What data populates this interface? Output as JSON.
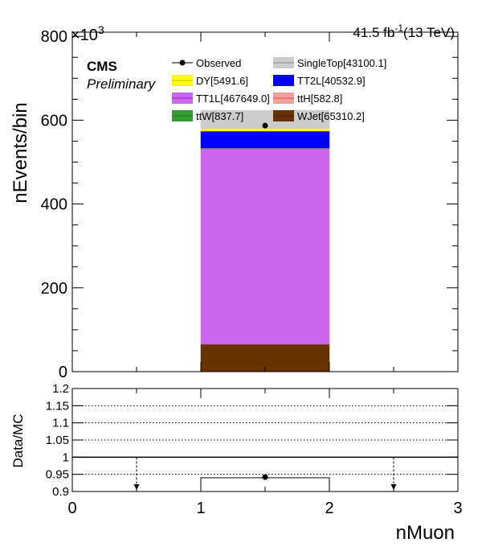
{
  "chart_data": [
    {
      "type": "bar",
      "stacked": true,
      "header": {
        "experiment": "CMS",
        "status": "Preliminary",
        "luminosity": "41.5 fb",
        "lumi_exponent": "-1",
        "energy": "(13 TeV)"
      },
      "ylabel": "nEvents/bin",
      "y_multiplier": "×10",
      "y_multiplier_exponent": "3",
      "ylim": [
        0,
        810000
      ],
      "yticks": [
        0,
        200000,
        400000,
        600000,
        800000
      ],
      "ytick_labels": [
        "0",
        "200",
        "400",
        "600",
        "800"
      ],
      "xlim": [
        0,
        3
      ],
      "bins": [
        [
          0,
          1
        ],
        [
          1,
          2
        ],
        [
          2,
          3
        ]
      ],
      "series": [
        {
          "name": "WJet",
          "legend": "WJet[65310.2]",
          "color": "#663300",
          "values": [
            0,
            65310.2,
            0
          ]
        },
        {
          "name": "TT1L",
          "legend": "TT1L[467649.0]",
          "color": "#cc66ee",
          "values": [
            0,
            467649.0,
            0
          ]
        },
        {
          "name": "ttW",
          "legend": "ttW[837.7]",
          "color": "#339933",
          "values": [
            0,
            837.7,
            0
          ]
        },
        {
          "name": "TT2L",
          "legend": "TT2L[40532.9]",
          "color": "#0000ff",
          "values": [
            0,
            40532.9,
            0
          ]
        },
        {
          "name": "ttH",
          "legend": "ttH[582.8]",
          "color": "#f4a09a",
          "values": [
            0,
            582.8,
            0
          ]
        },
        {
          "name": "DY",
          "legend": "DY[5491.6]",
          "color": "#ffff00",
          "values": [
            0,
            5491.6,
            0
          ]
        },
        {
          "name": "SingleTop",
          "legend": "SingleTop[43100.1]",
          "color": "#cccccc",
          "values": [
            0,
            43100.1,
            0
          ]
        }
      ],
      "observed": {
        "name": "Observed",
        "x": [
          1.5
        ],
        "y": [
          587000
        ]
      },
      "legend_order": [
        "Observed",
        "SingleTop[43100.1]",
        "DY[5491.6]",
        "TT2L[40532.9]",
        "TT1L[467649.0]",
        "ttH[582.8]",
        "ttW[837.7]",
        "WJet[65310.2]"
      ],
      "legend_placement": "top"
    },
    {
      "type": "line",
      "ylabel": "Data/MC",
      "xlabel": "nMuon",
      "xlim": [
        0,
        3
      ],
      "ylim": [
        0.9,
        1.2
      ],
      "yticks": [
        0.9,
        0.95,
        1,
        1.05,
        1.1,
        1.15,
        1.2
      ],
      "ytick_labels": [
        "0.9",
        "0.95",
        "1",
        "1.05",
        "1.1",
        "1.15",
        "1.2"
      ],
      "xticks": [
        0,
        1,
        2,
        3
      ],
      "xtick_labels": [
        "0",
        "1",
        "2",
        "3"
      ],
      "gridlines": [
        0.95,
        1.05,
        1.1,
        1.15
      ],
      "reference_line": 1,
      "ratio": {
        "x": [
          1.5
        ],
        "y": [
          0.942
        ]
      },
      "mc_uncertainty_box": {
        "x": [
          1,
          2
        ],
        "y": [
          0.9,
          0.94
        ]
      },
      "off_scale_arrows_x": [
        0.5,
        2.5
      ]
    }
  ]
}
